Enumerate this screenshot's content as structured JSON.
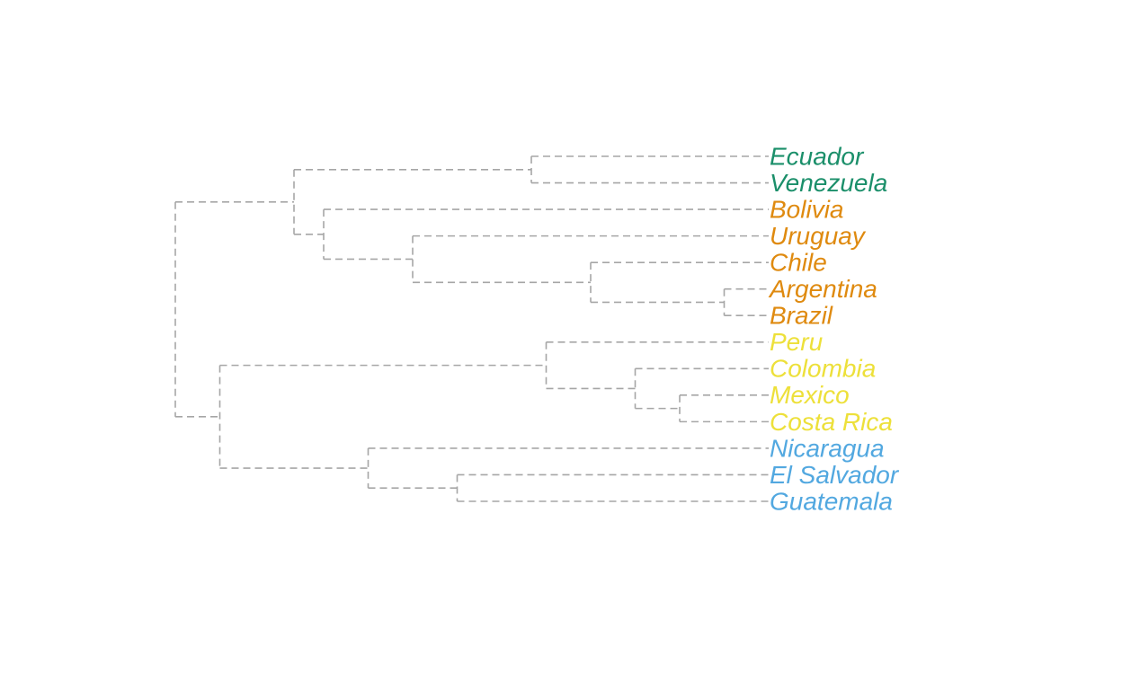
{
  "chart_data": {
    "type": "dendrogram",
    "title": "",
    "orientation": "root-left",
    "leaves": [
      {
        "name": "Ecuador",
        "group": "A"
      },
      {
        "name": "Venezuela",
        "group": "A"
      },
      {
        "name": "Bolivia",
        "group": "B"
      },
      {
        "name": "Uruguay",
        "group": "B"
      },
      {
        "name": "Chile",
        "group": "B"
      },
      {
        "name": "Argentina",
        "group": "B"
      },
      {
        "name": "Brazil",
        "group": "B"
      },
      {
        "name": "Peru",
        "group": "C"
      },
      {
        "name": "Colombia",
        "group": "C"
      },
      {
        "name": "Mexico",
        "group": "C"
      },
      {
        "name": "Costa Rica",
        "group": "C"
      },
      {
        "name": "Nicaragua",
        "group": "D"
      },
      {
        "name": "El Salvador",
        "group": "D"
      },
      {
        "name": "Guatemala",
        "group": "D"
      }
    ],
    "group_colors": {
      "A": "#1b8f6a",
      "B": "#df8a0f",
      "C": "#ede03a",
      "D": "#52a8e0"
    },
    "branch_color": "#a6a6a6",
    "tree": {
      "height": 1.0,
      "children": [
        {
          "height": 0.8,
          "children": [
            {
              "height": 0.4,
              "children": [
                {
                  "leaf": "Ecuador"
                },
                {
                  "leaf": "Venezuela"
                }
              ]
            },
            {
              "height": 0.75,
              "children": [
                {
                  "leaf": "Bolivia"
                },
                {
                  "height": 0.6,
                  "children": [
                    {
                      "leaf": "Uruguay"
                    },
                    {
                      "height": 0.3,
                      "children": [
                        {
                          "leaf": "Chile"
                        },
                        {
                          "height": 0.075,
                          "children": [
                            {
                              "leaf": "Argentina"
                            },
                            {
                              "leaf": "Brazil"
                            }
                          ]
                        }
                      ]
                    }
                  ]
                }
              ]
            }
          ]
        },
        {
          "height": 0.925,
          "children": [
            {
              "height": 0.375,
              "children": [
                {
                  "leaf": "Peru"
                },
                {
                  "height": 0.225,
                  "children": [
                    {
                      "leaf": "Colombia"
                    },
                    {
                      "height": 0.15,
                      "children": [
                        {
                          "leaf": "Mexico"
                        },
                        {
                          "leaf": "Costa Rica"
                        }
                      ]
                    }
                  ]
                }
              ]
            },
            {
              "height": 0.675,
              "children": [
                {
                  "leaf": "Nicaragua"
                },
                {
                  "height": 0.525,
                  "children": [
                    {
                      "leaf": "El Salvador"
                    },
                    {
                      "leaf": "Guatemala"
                    }
                  ]
                }
              ]
            }
          ]
        }
      ]
    }
  }
}
